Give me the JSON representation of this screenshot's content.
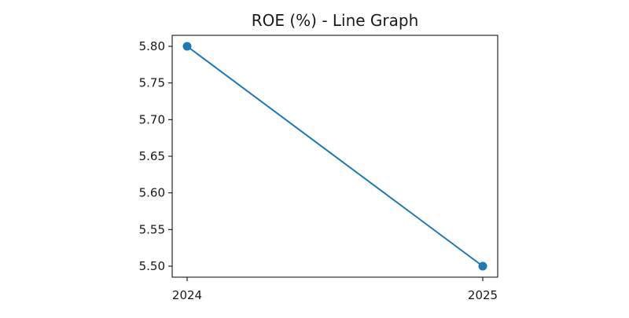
{
  "chart_data": {
    "type": "line",
    "title": "ROE (%) - Line Graph",
    "xlabel": "",
    "ylabel": "",
    "categories": [
      "2024",
      "2025"
    ],
    "series": [
      {
        "values": [
          5.8,
          5.5
        ],
        "color": "#1f77b4",
        "marker": "circle"
      }
    ],
    "ylim": [
      5.485,
      5.815
    ],
    "yticks": [
      "5.50",
      "5.55",
      "5.60",
      "5.65",
      "5.70",
      "5.75",
      "5.80"
    ],
    "grid": false,
    "legend": "none"
  }
}
